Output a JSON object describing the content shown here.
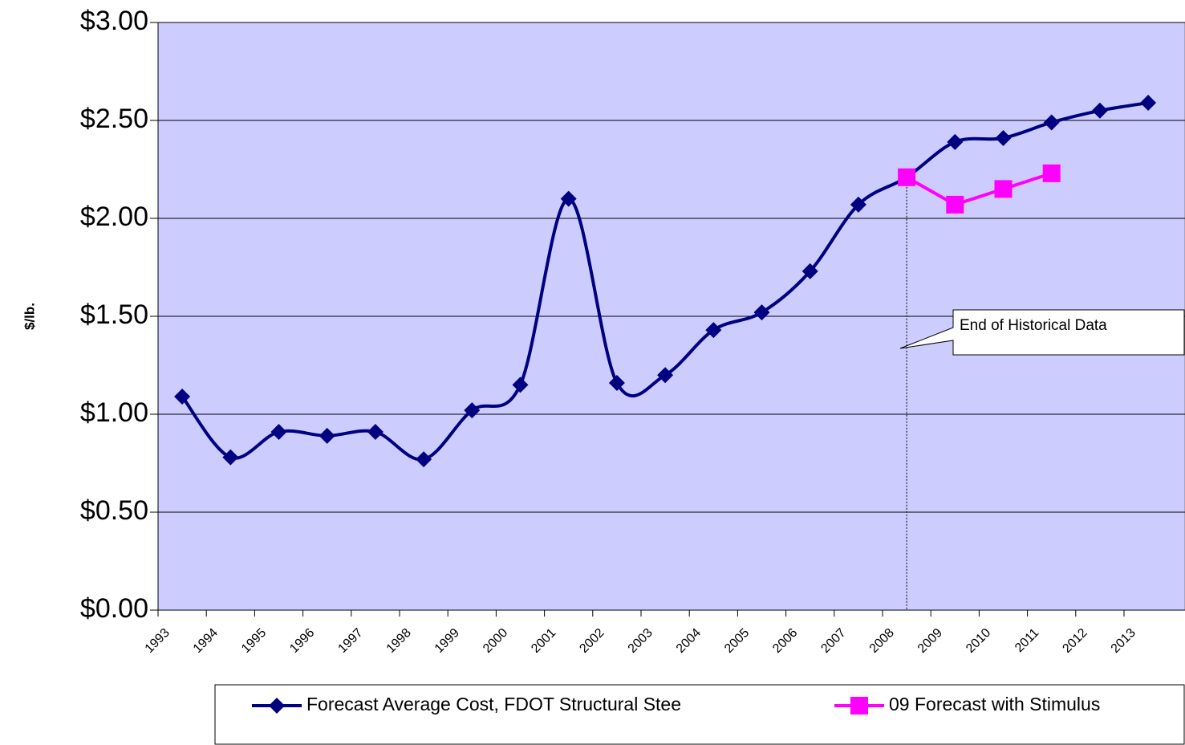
{
  "chart_data": {
    "type": "line",
    "y_label": "$/lb.",
    "annotation": "End of Historical Data",
    "categories": [
      "1993",
      "1994",
      "1995",
      "1996",
      "1997",
      "1998",
      "1999",
      "2000",
      "2001",
      "2002",
      "2003",
      "2004",
      "2005",
      "2006",
      "2007",
      "2008",
      "2009",
      "2010",
      "2011",
      "2012",
      "2013"
    ],
    "series": [
      {
        "name": "Forecast Average Cost, FDOT Structural Stee",
        "color": "#000080",
        "marker": "diamond",
        "smooth": true,
        "values": [
          1.09,
          0.78,
          0.91,
          0.89,
          0.91,
          0.77,
          1.02,
          1.15,
          2.1,
          1.16,
          1.2,
          1.43,
          1.52,
          1.73,
          2.07,
          2.21,
          2.39,
          2.41,
          2.49,
          2.55,
          2.59
        ]
      },
      {
        "name": "09 Forecast with Stimulus",
        "color": "#FF00FF",
        "marker": "square",
        "smooth": false,
        "values": [
          null,
          null,
          null,
          null,
          null,
          null,
          null,
          null,
          null,
          null,
          null,
          null,
          null,
          null,
          null,
          2.21,
          2.07,
          2.15,
          2.23,
          null,
          null
        ]
      }
    ],
    "annotation_category": "2008",
    "ylim": [
      0,
      3
    ],
    "yticks": [
      {
        "value": 0,
        "label": "$0.00"
      },
      {
        "value": 0.5,
        "label": "$0.50"
      },
      {
        "value": 1,
        "label": "$1.00"
      },
      {
        "value": 1.5,
        "label": "$1.50"
      },
      {
        "value": 2,
        "label": "$2.00"
      },
      {
        "value": 2.5,
        "label": "$2.50"
      },
      {
        "value": 3,
        "label": "$3.00"
      }
    ],
    "grid": true,
    "plot_background": "#CCCCFF",
    "legend_position": "bottom"
  }
}
